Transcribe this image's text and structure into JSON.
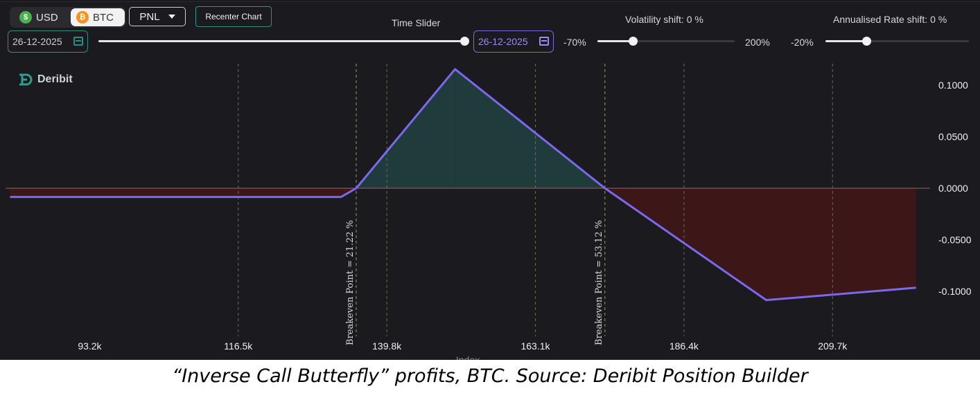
{
  "toolbar": {
    "currency_usd": "USD",
    "currency_btc": "BTC",
    "metric_select": "PNL",
    "recenter_label": "Recenter Chart"
  },
  "time_slider": {
    "label": "Time Slider",
    "start_date": "26-12-2025",
    "end_date": "26-12-2025",
    "position": 1.0
  },
  "volatility": {
    "label": "Volatility shift: 0 %",
    "min_label": "-70%",
    "max_label": "200%",
    "min": -70,
    "max": 200,
    "value": 0
  },
  "rate": {
    "label": "Annualised Rate shift: 0 %",
    "min_label": "-20%",
    "min": -20,
    "max": 50,
    "value": 0
  },
  "brand": {
    "name": "Deribit"
  },
  "colors": {
    "line": "#7b68ee",
    "profit_fill": "#1f3b3b",
    "loss_fill": "#3d1718",
    "grid": "#6b6b55",
    "accent": "#2f8f86"
  },
  "chart_data": {
    "type": "line",
    "xlabel": "Index",
    "xlim": [
      80000,
      225000
    ],
    "ylim": [
      -0.117,
      0.117
    ],
    "x_ticks": [
      93200,
      116500,
      139800,
      163100,
      186400,
      209700
    ],
    "x_tick_labels": [
      "93.2k",
      "116.5k",
      "139.8k",
      "163.1k",
      "186.4k",
      "209.7k"
    ],
    "y_ticks": [
      0.1,
      0.05,
      0,
      -0.05,
      -0.1
    ],
    "y_tick_labels": [
      "0.1000",
      "0.0500",
      "0.0000",
      "-0.0500",
      "-0.1000"
    ],
    "series": [
      {
        "x": [
          80700,
          132600,
          135000,
          150500,
          174000,
          199300,
          222800
        ],
        "y": [
          -0.0085,
          -0.0085,
          0.0,
          0.1155,
          0.0,
          -0.1085,
          -0.0965
        ]
      }
    ],
    "annotations": [
      {
        "x": 135000,
        "text": "Breakeven Point = 21.22 %"
      },
      {
        "x": 174000,
        "text": "Breakeven Point = 53.12 %"
      }
    ]
  },
  "caption": "“Inverse Call Butterfly” profits, BTC. Source: Deribit Position Builder"
}
